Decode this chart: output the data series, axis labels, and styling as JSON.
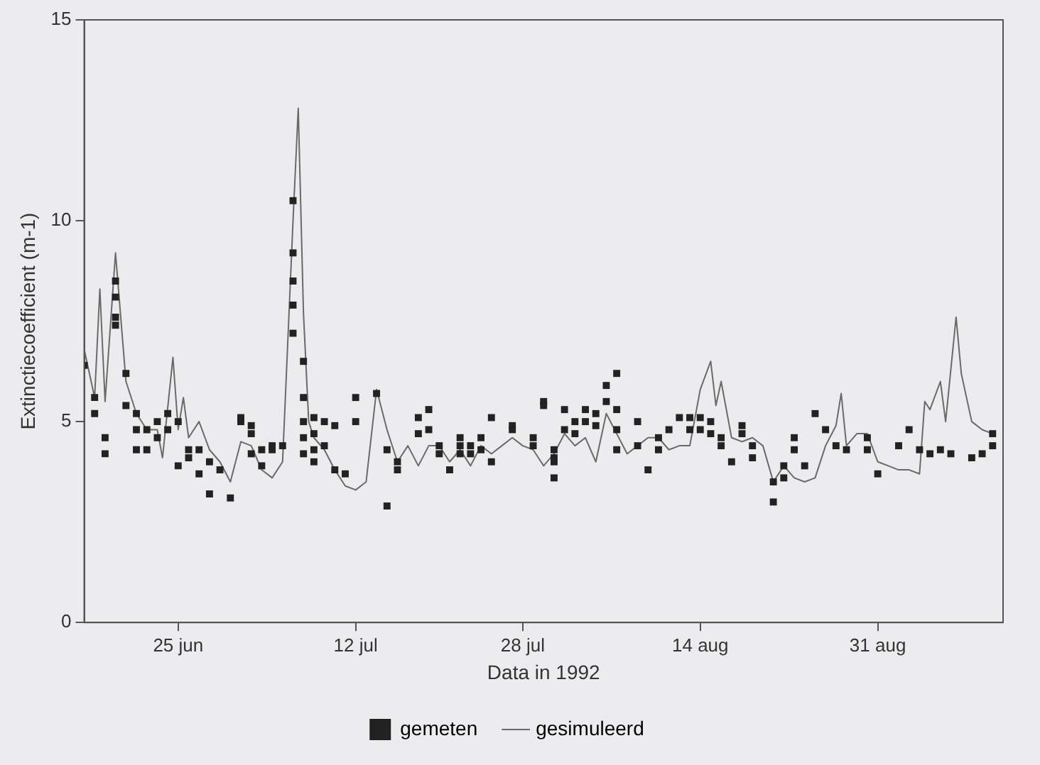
{
  "chart_data": {
    "type": "scatter",
    "xlabel": "Data in 1992",
    "ylabel": "Extinctiecoefficient (m-1)",
    "xlim": [
      "1992-06-16",
      "1992-09-12"
    ],
    "xticks": [
      {
        "value": "1992-06-25",
        "label": "25 jun"
      },
      {
        "value": "1992-07-12",
        "label": "12 jul"
      },
      {
        "value": "1992-07-28",
        "label": "28 jul"
      },
      {
        "value": "1992-08-14",
        "label": "14 aug"
      },
      {
        "value": "1992-08-31",
        "label": "31 aug"
      }
    ],
    "ylim": [
      0,
      15
    ],
    "yticks": [
      0,
      5,
      10,
      15
    ],
    "grid": false,
    "legend": "bottom",
    "series": [
      {
        "name": "gemeten",
        "type": "scatter",
        "marker": "square",
        "color": "#222222",
        "x": [
          "1992-06-16",
          "1992-06-17",
          "1992-06-17",
          "1992-06-18",
          "1992-06-18",
          "1992-06-19",
          "1992-06-19",
          "1992-06-19",
          "1992-06-19",
          "1992-06-20",
          "1992-06-20",
          "1992-06-21",
          "1992-06-21",
          "1992-06-21",
          "1992-06-22",
          "1992-06-22",
          "1992-06-23",
          "1992-06-23",
          "1992-06-24",
          "1992-06-24",
          "1992-06-25",
          "1992-06-25",
          "1992-06-26",
          "1992-06-26",
          "1992-06-27",
          "1992-06-27",
          "1992-06-28",
          "1992-06-28",
          "1992-06-29",
          "1992-06-30",
          "1992-07-01",
          "1992-07-01",
          "1992-07-02",
          "1992-07-02",
          "1992-07-02",
          "1992-07-03",
          "1992-07-03",
          "1992-07-04",
          "1992-07-04",
          "1992-07-05",
          "1992-07-06",
          "1992-07-06",
          "1992-07-06",
          "1992-07-06",
          "1992-07-06",
          "1992-07-07",
          "1992-07-07",
          "1992-07-07",
          "1992-07-07",
          "1992-07-07",
          "1992-07-08",
          "1992-07-08",
          "1992-07-08",
          "1992-07-08",
          "1992-07-09",
          "1992-07-09",
          "1992-07-10",
          "1992-07-10",
          "1992-07-11",
          "1992-07-12",
          "1992-07-12",
          "1992-07-14",
          "1992-07-15",
          "1992-07-15",
          "1992-07-16",
          "1992-07-16",
          "1992-07-18",
          "1992-07-18",
          "1992-07-19",
          "1992-07-19",
          "1992-07-20",
          "1992-07-20",
          "1992-07-21",
          "1992-07-22",
          "1992-07-22",
          "1992-07-22",
          "1992-07-23",
          "1992-07-23",
          "1992-07-24",
          "1992-07-24",
          "1992-07-25",
          "1992-07-25",
          "1992-07-27",
          "1992-07-27",
          "1992-07-29",
          "1992-07-29",
          "1992-07-30",
          "1992-07-30",
          "1992-07-31",
          "1992-07-31",
          "1992-07-31",
          "1992-07-31",
          "1992-08-01",
          "1992-08-01",
          "1992-08-02",
          "1992-08-02",
          "1992-08-03",
          "1992-08-03",
          "1992-08-04",
          "1992-08-04",
          "1992-08-05",
          "1992-08-05",
          "1992-08-06",
          "1992-08-06",
          "1992-08-06",
          "1992-08-06",
          "1992-08-08",
          "1992-08-08",
          "1992-08-09",
          "1992-08-10",
          "1992-08-10",
          "1992-08-11",
          "1992-08-12",
          "1992-08-13",
          "1992-08-13",
          "1992-08-14",
          "1992-08-14",
          "1992-08-15",
          "1992-08-15",
          "1992-08-16",
          "1992-08-16",
          "1992-08-17",
          "1992-08-18",
          "1992-08-18",
          "1992-08-19",
          "1992-08-19",
          "1992-08-21",
          "1992-08-21",
          "1992-08-22",
          "1992-08-22",
          "1992-08-23",
          "1992-08-23",
          "1992-08-24",
          "1992-08-25",
          "1992-08-26",
          "1992-08-27",
          "1992-08-28",
          "1992-08-30",
          "1992-08-30",
          "1992-08-31",
          "1992-09-02",
          "1992-09-03",
          "1992-09-04",
          "1992-09-05",
          "1992-09-06",
          "1992-09-07",
          "1992-09-09",
          "1992-09-10",
          "1992-09-11",
          "1992-09-11"
        ],
        "values": [
          6.4,
          5.6,
          5.2,
          4.6,
          4.2,
          8.5,
          8.1,
          7.6,
          7.4,
          6.2,
          5.4,
          5.2,
          4.8,
          4.3,
          4.8,
          4.3,
          5.0,
          4.6,
          5.2,
          4.8,
          5.0,
          3.9,
          4.3,
          4.1,
          4.3,
          3.7,
          4.0,
          3.2,
          3.8,
          3.1,
          5.1,
          5.0,
          4.9,
          4.7,
          4.2,
          4.3,
          3.9,
          4.4,
          4.3,
          4.4,
          10.5,
          9.2,
          8.5,
          7.9,
          7.2,
          6.5,
          5.6,
          5.0,
          4.6,
          4.2,
          5.1,
          4.7,
          4.3,
          4.0,
          5.0,
          4.4,
          4.9,
          3.8,
          3.7,
          5.6,
          5.0,
          5.7,
          4.3,
          2.9,
          4.0,
          3.8,
          5.1,
          4.7,
          5.3,
          4.8,
          4.4,
          4.2,
          3.8,
          4.6,
          4.4,
          4.2,
          4.4,
          4.2,
          4.6,
          4.3,
          5.1,
          4.0,
          4.9,
          4.8,
          4.6,
          4.4,
          5.5,
          5.4,
          4.3,
          4.1,
          4.0,
          3.6,
          5.3,
          4.8,
          5.0,
          4.7,
          5.3,
          5.0,
          5.2,
          4.9,
          5.9,
          5.5,
          6.2,
          5.3,
          4.8,
          4.3,
          4.4,
          5.0,
          3.8,
          4.3,
          4.6,
          4.8,
          5.1,
          5.1,
          4.8,
          5.1,
          4.8,
          5.0,
          4.7,
          4.6,
          4.4,
          4.0,
          4.9,
          4.7,
          4.4,
          4.1,
          3.5,
          3.0,
          3.9,
          3.6,
          4.6,
          4.3,
          3.9,
          5.2,
          4.8,
          4.4,
          4.3,
          4.6,
          4.3,
          3.7,
          4.4,
          4.8,
          4.3,
          4.2,
          4.3,
          4.2,
          4.1,
          4.2,
          4.7,
          4.4
        ]
      },
      {
        "name": "gesimuleerd",
        "type": "line",
        "marker": "none",
        "line_style": "solid",
        "color": "#6a6a6a",
        "x": [
          "1992-06-16",
          "1992-06-17",
          "1992-06-17T12:00",
          "1992-06-18",
          "1992-06-19",
          "1992-06-20",
          "1992-06-21",
          "1992-06-22",
          "1992-06-23",
          "1992-06-23T12:00",
          "1992-06-24T12:00",
          "1992-06-25",
          "1992-06-25T12:00",
          "1992-06-26",
          "1992-06-27",
          "1992-06-28",
          "1992-06-29",
          "1992-06-30",
          "1992-07-01",
          "1992-07-02",
          "1992-07-03",
          "1992-07-04",
          "1992-07-05",
          "1992-07-06",
          "1992-07-06T12:00",
          "1992-07-07",
          "1992-07-07T12:00",
          "1992-07-08",
          "1992-07-09",
          "1992-07-10",
          "1992-07-11",
          "1992-07-12",
          "1992-07-13",
          "1992-07-14",
          "1992-07-15",
          "1992-07-16",
          "1992-07-17",
          "1992-07-18",
          "1992-07-19",
          "1992-07-20",
          "1992-07-21",
          "1992-07-22",
          "1992-07-23",
          "1992-07-24",
          "1992-07-25",
          "1992-07-26",
          "1992-07-27",
          "1992-07-28",
          "1992-07-29",
          "1992-07-30",
          "1992-07-31",
          "1992-08-01",
          "1992-08-02",
          "1992-08-03",
          "1992-08-04",
          "1992-08-05",
          "1992-08-06",
          "1992-08-07",
          "1992-08-08",
          "1992-08-09",
          "1992-08-10",
          "1992-08-11",
          "1992-08-12",
          "1992-08-13",
          "1992-08-14",
          "1992-08-15",
          "1992-08-15T12:00",
          "1992-08-16",
          "1992-08-17",
          "1992-08-18",
          "1992-08-19",
          "1992-08-20",
          "1992-08-21",
          "1992-08-22",
          "1992-08-23",
          "1992-08-24",
          "1992-08-25",
          "1992-08-26",
          "1992-08-27",
          "1992-08-27T12:00",
          "1992-08-28",
          "1992-08-29",
          "1992-08-30",
          "1992-08-31",
          "1992-09-01",
          "1992-09-02",
          "1992-09-03",
          "1992-09-04",
          "1992-09-04T12:00",
          "1992-09-05",
          "1992-09-06",
          "1992-09-06T12:00",
          "1992-09-07T12:00",
          "1992-09-08",
          "1992-09-09",
          "1992-09-10",
          "1992-09-11"
        ],
        "values": [
          6.8,
          5.6,
          8.3,
          5.5,
          9.2,
          6.0,
          5.2,
          4.8,
          4.8,
          4.1,
          6.6,
          4.8,
          5.6,
          4.6,
          5.0,
          4.3,
          4.0,
          3.5,
          4.5,
          4.4,
          3.8,
          3.6,
          4.0,
          10.0,
          12.8,
          7.7,
          5.0,
          4.6,
          4.3,
          3.8,
          3.4,
          3.3,
          3.5,
          5.8,
          4.8,
          4.0,
          4.4,
          3.9,
          4.4,
          4.4,
          4.0,
          4.3,
          3.9,
          4.4,
          4.2,
          4.4,
          4.6,
          4.4,
          4.3,
          3.9,
          4.2,
          4.7,
          4.4,
          4.6,
          4.0,
          5.2,
          4.7,
          4.2,
          4.4,
          4.6,
          4.6,
          4.3,
          4.4,
          4.4,
          5.8,
          6.5,
          5.4,
          6.0,
          4.6,
          4.5,
          4.6,
          4.4,
          3.5,
          3.9,
          3.6,
          3.5,
          3.6,
          4.4,
          4.9,
          5.7,
          4.4,
          4.7,
          4.7,
          4.0,
          3.9,
          3.8,
          3.8,
          3.7,
          5.5,
          5.3,
          6.0,
          5.0,
          7.6,
          6.2,
          5.0,
          4.8,
          4.7
        ]
      }
    ]
  }
}
